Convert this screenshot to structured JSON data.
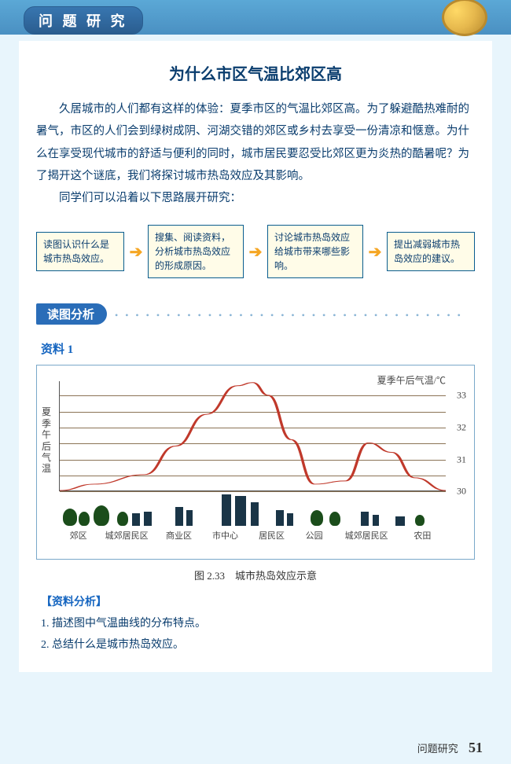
{
  "header": {
    "pill": "问 题 研 究"
  },
  "title": "为什么市区气温比郊区高",
  "paragraphs": [
    "久居城市的人们都有这样的体验：夏季市区的气温比郊区高。为了躲避酷热难耐的暑气，市区的人们会到绿树成阴、河湖交错的郊区或乡村去享受一份清凉和惬意。为什么在享受现代城市的舒适与便利的同时，城市居民要忍受比郊区更为炎热的酷暑呢？为了揭开这个谜底，我们将探讨城市热岛效应及其影响。",
    "同学们可以沿着以下思路展开研究："
  ],
  "flow": {
    "boxes": [
      "读图认识什么是城市热岛效应。",
      "搜集、阅读资料，分析城市热岛效应的形成原因。",
      "讨论城市热岛效应给城市带来哪些影响。",
      "提出减弱城市热岛效应的建议。"
    ]
  },
  "section_tag": "读图分析",
  "material_label": "资料 1",
  "chart": {
    "top_title": "夏季午后气温/℃",
    "y_label": "夏季午后气温",
    "y_ticks": [
      30,
      31,
      32,
      33
    ],
    "grid_color": "#8b7355",
    "curve_color": "#c0392b",
    "x_categories": [
      "郊区",
      "城郊居民区",
      "商业区",
      "市中心",
      "居民区",
      "公园",
      "城郊居民区",
      "农田"
    ],
    "curve_points": [
      [
        0,
        30.0
      ],
      [
        9,
        30.2
      ],
      [
        22,
        30.5
      ],
      [
        30,
        31.4
      ],
      [
        38,
        32.4
      ],
      [
        46,
        33.3
      ],
      [
        50,
        33.4
      ],
      [
        54,
        33.0
      ],
      [
        60,
        31.6
      ],
      [
        66,
        30.2
      ],
      [
        74,
        30.3
      ],
      [
        80,
        31.5
      ],
      [
        86,
        31.2
      ],
      [
        92,
        30.4
      ],
      [
        100,
        30.0
      ]
    ]
  },
  "fig_caption": "图 2.33　城市热岛效应示意",
  "analysis_head": "【资料分析】",
  "questions": [
    "1. 描述图中气温曲线的分布特点。",
    "2. 总结什么是城市热岛效应。"
  ],
  "footer": {
    "label": "问题研究",
    "page": "51"
  }
}
